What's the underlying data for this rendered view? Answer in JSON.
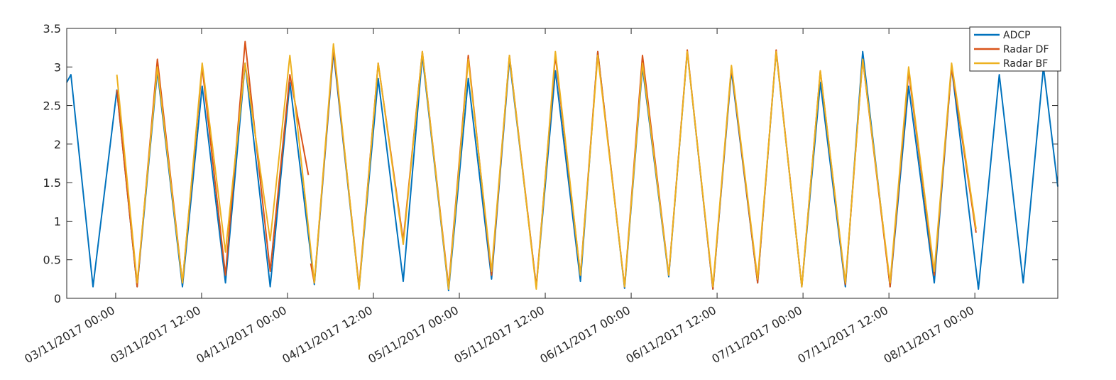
{
  "chart_data": {
    "type": "line",
    "xlim": [
      "02/11/2017 17:10",
      "08/11/2017 11:35"
    ],
    "xticks": [
      "03/11/2017 00:00",
      "03/11/2017 12:00",
      "04/11/2017 00:00",
      "04/11/2017 12:00",
      "05/11/2017 00:00",
      "05/11/2017 12:00",
      "06/11/2017 00:00",
      "06/11/2017 12:00",
      "07/11/2017 00:00",
      "07/11/2017 12:00",
      "08/11/2017 00:00"
    ],
    "ylim": [
      0,
      3.5
    ],
    "yticks": [
      0,
      0.5,
      1,
      1.5,
      2,
      2.5,
      3,
      3.5
    ],
    "legend": "top-right",
    "series": [
      {
        "name": "ADCP",
        "color": "#0072BD",
        "x": [
          "02/11/2017 17:10",
          "02/11/2017 17:45",
          "02/11/2017 20:50",
          "03/11/2017 00:10",
          "03/11/2017 03:00",
          "03/11/2017 05:50",
          "03/11/2017 09:20",
          "03/11/2017 12:05",
          "03/11/2017 15:20",
          "03/11/2017 18:05",
          "03/11/2017 21:35",
          "04/11/2017 00:20",
          "04/11/2017 03:45",
          "04/11/2017 06:25",
          "04/11/2017 10:00",
          "04/11/2017 12:40",
          "04/11/2017 16:10",
          "04/11/2017 18:50",
          "04/11/2017 22:30",
          "05/11/2017 01:15",
          "05/11/2017 04:30",
          "05/11/2017 07:00",
          "05/11/2017 10:45",
          "05/11/2017 13:25",
          "05/11/2017 16:55",
          "05/11/2017 19:20",
          "05/11/2017 23:05",
          "06/11/2017 01:35",
          "06/11/2017 05:15",
          "06/11/2017 07:50",
          "06/11/2017 11:25",
          "06/11/2017 14:00",
          "06/11/2017 17:40",
          "06/11/2017 20:15",
          "06/11/2017 23:50",
          "07/11/2017 02:25",
          "07/11/2017 05:55",
          "07/11/2017 08:20",
          "07/11/2017 12:10",
          "07/11/2017 14:45",
          "07/11/2017 18:20",
          "07/11/2017 20:45",
          "08/11/2017 00:30",
          "08/11/2017 03:25",
          "08/11/2017 06:45",
          "08/11/2017 09:35",
          "08/11/2017 11:35"
        ],
        "values": [
          2.8,
          2.9,
          0.15,
          2.7,
          0.15,
          2.95,
          0.15,
          2.75,
          0.2,
          3.05,
          0.15,
          2.8,
          0.18,
          3.2,
          0.13,
          2.85,
          0.22,
          3.15,
          0.1,
          2.85,
          0.25,
          3.1,
          0.15,
          2.95,
          0.22,
          3.2,
          0.13,
          3.0,
          0.28,
          3.2,
          0.12,
          2.95,
          0.2,
          3.2,
          0.15,
          2.8,
          0.15,
          3.2,
          0.15,
          2.75,
          0.2,
          3.0,
          0.12,
          2.9,
          0.2,
          3.0,
          1.45
        ]
      },
      {
        "name": "Radar DF",
        "color": "#D95319",
        "x": [
          "03/11/2017 00:10",
          "03/11/2017 03:00",
          "03/11/2017 05:50",
          "03/11/2017 09:20",
          "03/11/2017 12:05",
          "03/11/2017 15:20",
          "03/11/2017 18:05",
          "03/11/2017 21:35",
          "04/11/2017 00:20",
          "04/11/2017 02:55",
          "04/11/2017 03:05",
          "04/11/2017 03:15",
          "04/11/2017 03:45",
          "04/11/2017 06:25",
          "04/11/2017 10:00",
          "04/11/2017 12:40",
          "04/11/2017 16:10",
          "04/11/2017 18:50",
          "04/11/2017 22:30",
          "05/11/2017 01:15",
          "05/11/2017 04:30",
          "05/11/2017 07:00",
          "05/11/2017 10:45",
          "05/11/2017 13:25",
          "05/11/2017 16:55",
          "05/11/2017 19:20",
          "05/11/2017 23:05",
          "06/11/2017 01:35",
          "06/11/2017 05:15",
          "06/11/2017 07:50",
          "06/11/2017 11:25",
          "06/11/2017 14:00",
          "06/11/2017 17:40",
          "06/11/2017 20:15",
          "06/11/2017 23:50",
          "07/11/2017 02:25",
          "07/11/2017 05:55",
          "07/11/2017 08:20",
          "07/11/2017 12:10",
          "07/11/2017 14:45",
          "07/11/2017 18:20",
          "07/11/2017 20:45",
          "08/11/2017 00:10"
        ],
        "values": [
          2.7,
          0.15,
          3.1,
          0.2,
          3.0,
          0.3,
          3.33,
          0.35,
          2.9,
          1.6,
          null,
          0.45,
          0.2,
          3.25,
          0.15,
          3.05,
          0.75,
          3.2,
          0.15,
          3.15,
          0.3,
          3.15,
          0.15,
          3.15,
          0.3,
          3.2,
          0.15,
          3.15,
          0.3,
          3.22,
          0.12,
          3.0,
          0.2,
          3.22,
          0.15,
          2.95,
          0.18,
          3.1,
          0.15,
          2.95,
          0.3,
          3.0,
          0.85
        ]
      },
      {
        "name": "Radar BF",
        "color": "#EDB120",
        "x": [
          "03/11/2017 00:10",
          "03/11/2017 03:00",
          "03/11/2017 05:50",
          "03/11/2017 09:20",
          "03/11/2017 12:05",
          "03/11/2017 15:20",
          "03/11/2017 18:05",
          "03/11/2017 21:35",
          "04/11/2017 00:20",
          "04/11/2017 03:45",
          "04/11/2017 06:25",
          "04/11/2017 10:00",
          "04/11/2017 12:40",
          "04/11/2017 16:10",
          "04/11/2017 18:50",
          "04/11/2017 22:30",
          "05/11/2017 01:15",
          "05/11/2017 04:30",
          "05/11/2017 07:00",
          "05/11/2017 10:45",
          "05/11/2017 13:25",
          "05/11/2017 16:55",
          "05/11/2017 19:20",
          "05/11/2017 23:05",
          "06/11/2017 01:35",
          "06/11/2017 05:15",
          "06/11/2017 07:50",
          "06/11/2017 11:25",
          "06/11/2017 14:00",
          "06/11/2017 17:40",
          "06/11/2017 20:15",
          "06/11/2017 23:50",
          "07/11/2017 02:25",
          "07/11/2017 05:55",
          "07/11/2017 08:20",
          "07/11/2017 12:10",
          "07/11/2017 14:45",
          "07/11/2017 18:20",
          "07/11/2017 20:45",
          "08/11/2017 00:10"
        ],
        "values": [
          2.9,
          0.2,
          3.0,
          0.2,
          3.05,
          0.6,
          3.05,
          0.75,
          3.15,
          0.2,
          3.3,
          0.12,
          3.05,
          0.7,
          3.2,
          0.12,
          3.1,
          0.35,
          3.15,
          0.12,
          3.2,
          0.3,
          3.15,
          0.15,
          3.05,
          0.3,
          3.2,
          0.15,
          3.02,
          0.25,
          3.2,
          0.15,
          2.95,
          0.2,
          3.1,
          0.2,
          3.0,
          0.35,
          3.05,
          0.9
        ]
      }
    ]
  }
}
